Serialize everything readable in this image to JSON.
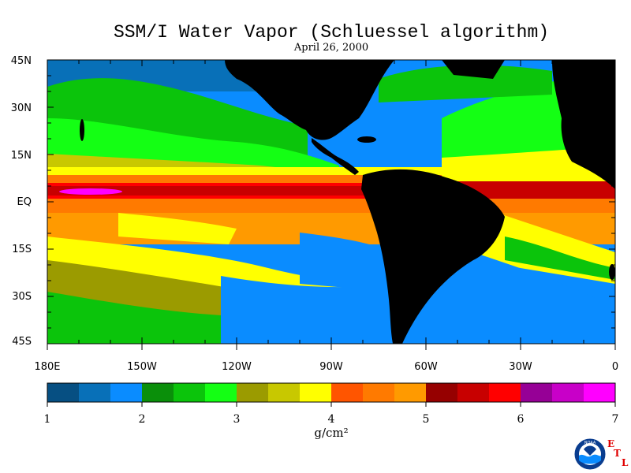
{
  "title": "SSM/I Water Vapor (Schluessel algorithm)",
  "subtitle": "April 26, 2000",
  "lat_labels": [
    "45N",
    "30N",
    "15N",
    "EQ",
    "15S",
    "30S",
    "45S"
  ],
  "lon_labels": [
    "180E",
    "150W",
    "120W",
    "90W",
    "60W",
    "30W",
    "0"
  ],
  "colorbar": {
    "labels": [
      "1",
      "2",
      "3",
      "4",
      "5",
      "6",
      "7"
    ],
    "unit": "g/cm²",
    "colors": [
      "#064f82",
      "#0870b8",
      "#0a8cff",
      "#0a8f0a",
      "#0bc40b",
      "#14ff14",
      "#9b9b00",
      "#c8c800",
      "#ffff00",
      "#ff5500",
      "#ff7a00",
      "#ff9a00",
      "#960000",
      "#c80000",
      "#ff0000",
      "#960096",
      "#c800c8",
      "#ff00ff"
    ]
  },
  "logo": {
    "icon": "noaa-logo",
    "text": "NOAA",
    "letters": [
      "E",
      "T",
      "L"
    ]
  },
  "palette": {
    "land": "#000000",
    "frame": "#000000",
    "background": "#ffffff"
  }
}
